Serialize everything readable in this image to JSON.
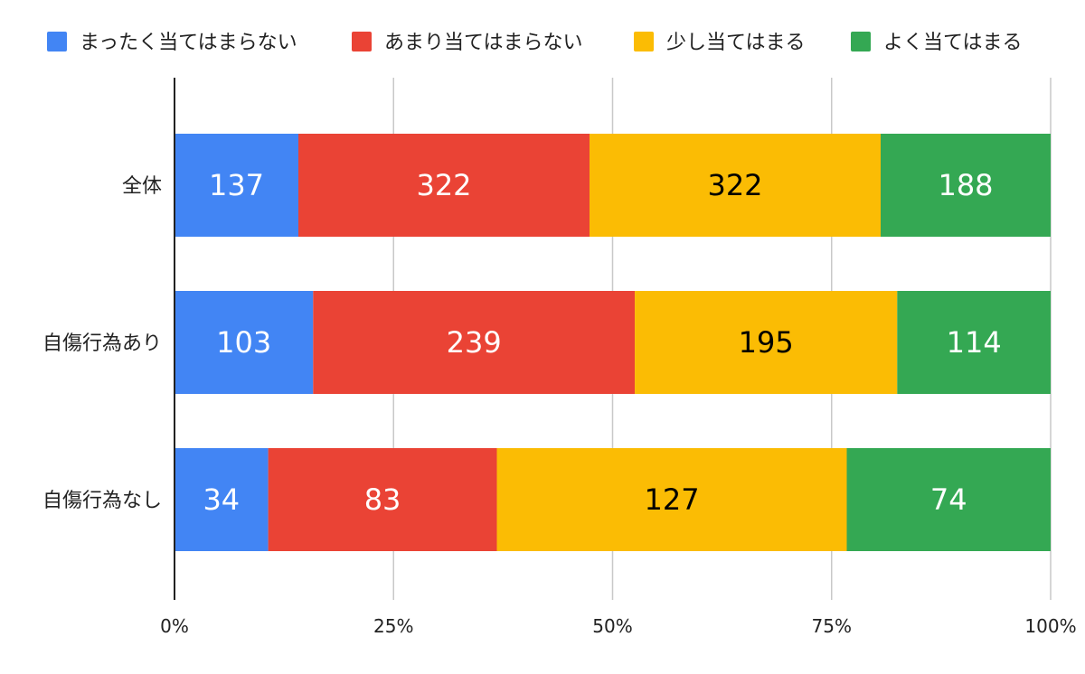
{
  "chart_data": {
    "type": "bar",
    "orientation": "horizontal",
    "stacked": "percent",
    "title": "",
    "xlabel": "",
    "ylabel": "",
    "categories": [
      "全体",
      "自傷行為あり",
      "自傷行為なし"
    ],
    "series": [
      {
        "name": "まったく当てはまらない",
        "color": "#4285F4",
        "label_color": "#ffffff",
        "values": [
          137,
          103,
          34
        ]
      },
      {
        "name": "あまり当てはまらない",
        "color": "#EA4335",
        "label_color": "#ffffff",
        "values": [
          322,
          239,
          83
        ]
      },
      {
        "name": "少し当てはまる",
        "color": "#FBBC04",
        "label_color": "#000000",
        "values": [
          322,
          195,
          127
        ]
      },
      {
        "name": "よく当てはまる",
        "color": "#34A853",
        "label_color": "#ffffff",
        "values": [
          188,
          114,
          74
        ]
      }
    ],
    "x_ticks": [
      "0%",
      "25%",
      "50%",
      "75%",
      "100%"
    ],
    "xlim": [
      0,
      100
    ],
    "grid": true,
    "legend_position": "top"
  }
}
